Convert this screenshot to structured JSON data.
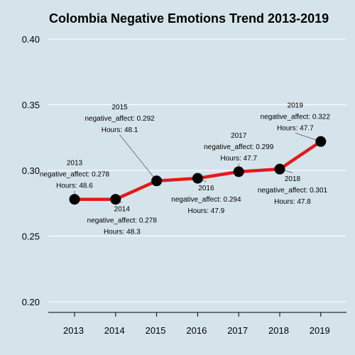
{
  "chart_data": {
    "type": "line",
    "title": "Colombia Negative Emotions Trend 2013-2019",
    "xlabel": "",
    "ylabel": "",
    "x": [
      "2013",
      "2014",
      "2015",
      "2016",
      "2017",
      "2018",
      "2019"
    ],
    "series": [
      {
        "values": [
          0.278,
          0.278,
          0.292,
          0.294,
          0.299,
          0.301,
          0.322
        ]
      }
    ],
    "ylim": [
      0.19,
      0.42
    ],
    "yticks": [
      "0.20",
      "0.25",
      "0.30",
      "0.35",
      "0.40"
    ],
    "grid": "horizontal",
    "colors": {
      "background": "#d5e4eb",
      "line": "#e31a1c",
      "marker": "#000000",
      "grid": "#ffffff"
    },
    "annotations": [
      {
        "year": "2013",
        "position": "above",
        "lines": [
          "2013",
          "negative_affect: 0.278",
          "Hours: 48.6"
        ]
      },
      {
        "year": "2014",
        "position": "below",
        "lines": [
          "2014",
          "negative_affect: 0.278",
          "Hours: 48.3"
        ]
      },
      {
        "year": "2015",
        "position": "above-far",
        "lines": [
          "2015",
          "negative_affect: 0.292",
          "Hours: 48.1"
        ]
      },
      {
        "year": "2016",
        "position": "below",
        "lines": [
          "2016",
          "negative_affect: 0.294",
          "Hours: 47.9"
        ]
      },
      {
        "year": "2017",
        "position": "above",
        "lines": [
          "2017",
          "negative_affect: 0.299",
          "Hours: 47.7"
        ]
      },
      {
        "year": "2018",
        "position": "below",
        "lines": [
          "2018",
          "negative_affect: 0.301",
          "Hours: 47.8"
        ]
      },
      {
        "year": "2019",
        "position": "above",
        "lines": [
          "2019",
          "negative_affect: 0.322",
          "Hours: 47.7"
        ]
      }
    ]
  }
}
